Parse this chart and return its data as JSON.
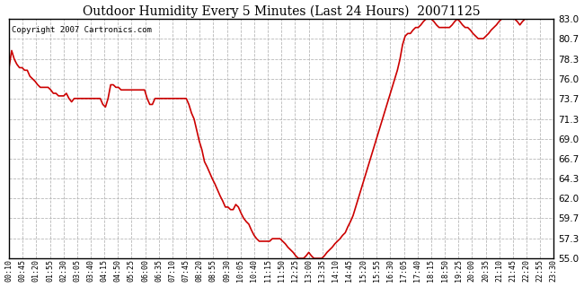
{
  "title": "Outdoor Humidity Every 5 Minutes (Last 24 Hours)  20071125",
  "copyright": "Copyright 2007 Cartronics.com",
  "line_color": "#cc0000",
  "background_color": "#ffffff",
  "grid_color": "#b8b8b8",
  "ylim": [
    55.0,
    83.0
  ],
  "yticks": [
    55.0,
    57.3,
    59.7,
    62.0,
    64.3,
    66.7,
    69.0,
    71.3,
    73.7,
    76.0,
    78.3,
    80.7,
    83.0
  ],
  "xtick_labels": [
    "00:10",
    "00:45",
    "01:20",
    "01:55",
    "02:30",
    "03:05",
    "03:40",
    "04:15",
    "04:50",
    "05:25",
    "06:00",
    "06:35",
    "07:10",
    "07:45",
    "08:20",
    "08:55",
    "09:30",
    "10:05",
    "10:40",
    "11:15",
    "11:50",
    "12:25",
    "13:00",
    "13:35",
    "14:10",
    "14:45",
    "15:20",
    "15:55",
    "16:30",
    "17:05",
    "17:40",
    "18:15",
    "18:50",
    "19:25",
    "20:00",
    "20:35",
    "21:10",
    "21:45",
    "22:20",
    "22:55",
    "23:30"
  ],
  "humidity_values": [
    77.3,
    79.3,
    78.3,
    77.7,
    77.3,
    77.3,
    77.0,
    77.0,
    76.3,
    76.0,
    75.7,
    75.3,
    75.0,
    75.0,
    75.0,
    75.0,
    74.7,
    74.3,
    74.3,
    74.0,
    74.0,
    74.0,
    74.3,
    73.7,
    73.3,
    73.7,
    73.7,
    73.7,
    73.7,
    73.7,
    73.7,
    73.7,
    73.7,
    73.7,
    73.7,
    73.7,
    73.0,
    72.7,
    73.7,
    75.3,
    75.3,
    75.0,
    75.0,
    74.7,
    74.7,
    74.7,
    74.7,
    74.7,
    74.7,
    74.7,
    74.7,
    74.7,
    74.7,
    73.7,
    73.0,
    73.0,
    73.7,
    73.7,
    73.7,
    73.7,
    73.7,
    73.7,
    73.7,
    73.7,
    73.7,
    73.7,
    73.7,
    73.7,
    73.7,
    73.0,
    72.0,
    71.3,
    70.0,
    68.7,
    67.7,
    66.3,
    65.7,
    65.0,
    64.3,
    63.7,
    63.0,
    62.3,
    61.7,
    61.0,
    61.0,
    60.7,
    60.7,
    61.3,
    61.0,
    60.3,
    59.7,
    59.3,
    59.0,
    58.3,
    57.7,
    57.3,
    57.0,
    57.0,
    57.0,
    57.0,
    57.0,
    57.3,
    57.3,
    57.3,
    57.3,
    57.0,
    56.7,
    56.3,
    56.0,
    55.7,
    55.3,
    55.0,
    55.0,
    55.0,
    55.3,
    55.7,
    55.3,
    55.0,
    55.0,
    55.0,
    55.0,
    55.3,
    55.7,
    56.0,
    56.3,
    56.7,
    57.0,
    57.3,
    57.7,
    58.0,
    58.7,
    59.3,
    60.0,
    61.0,
    62.0,
    63.0,
    64.0,
    65.0,
    66.0,
    67.0,
    68.0,
    69.0,
    70.0,
    71.0,
    72.0,
    73.0,
    74.0,
    75.0,
    76.0,
    77.0,
    78.3,
    80.0,
    81.0,
    81.3,
    81.3,
    81.7,
    82.0,
    82.0,
    82.3,
    82.7,
    83.0,
    83.0,
    83.0,
    82.7,
    82.3,
    82.0,
    82.0,
    82.0,
    82.0,
    82.0,
    82.3,
    82.7,
    83.0,
    82.7,
    82.3,
    82.0,
    82.0,
    81.7,
    81.3,
    81.0,
    80.7,
    80.7,
    80.7,
    81.0,
    81.3,
    81.7,
    82.0,
    82.3,
    82.7,
    83.0,
    83.0,
    83.0,
    83.0,
    83.0,
    83.0,
    82.7,
    82.3,
    82.7,
    83.0,
    83.0,
    83.0,
    83.0,
    83.0,
    83.0,
    83.0,
    83.0,
    83.0,
    83.0,
    83.0,
    83.3
  ]
}
